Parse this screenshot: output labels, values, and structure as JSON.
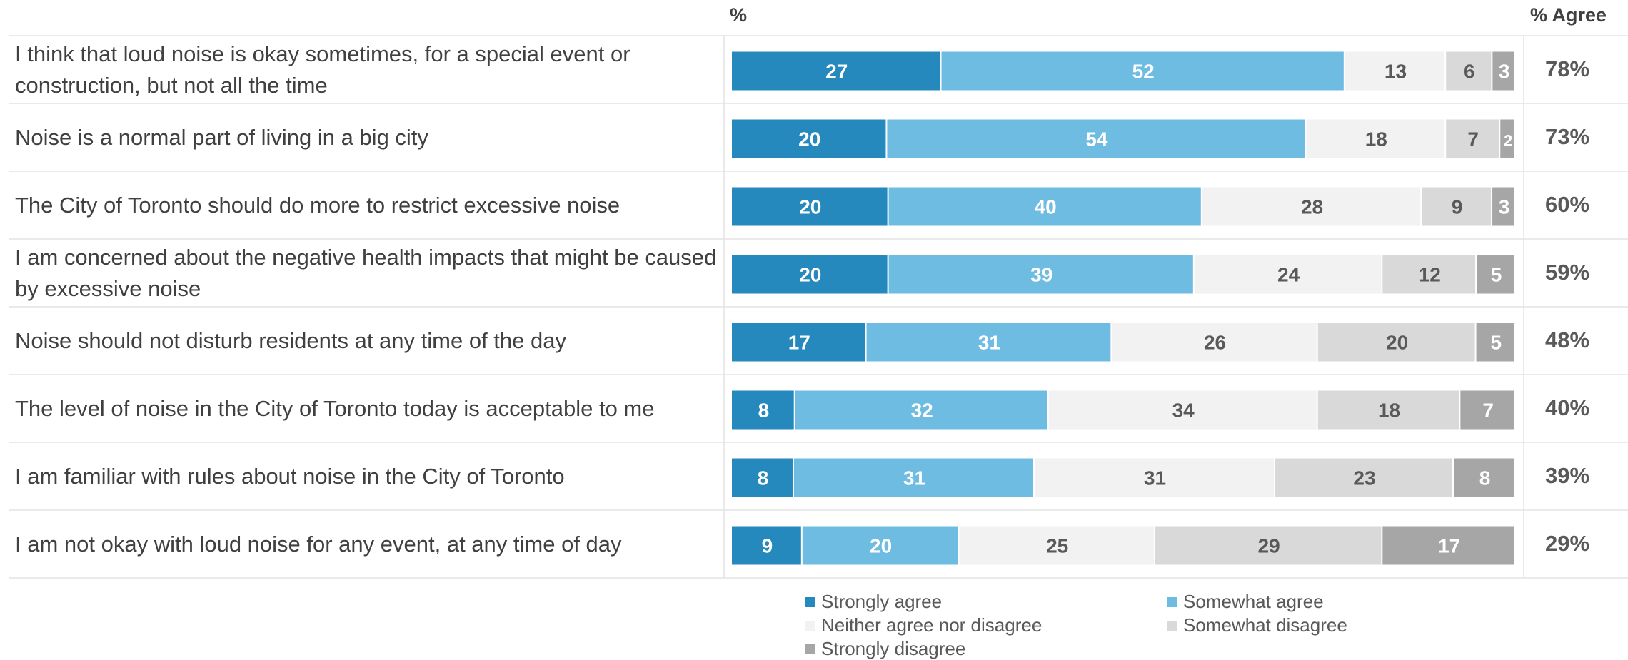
{
  "header": {
    "pct_label": "%",
    "agree_label": "% Agree"
  },
  "chart_data": {
    "type": "bar",
    "orientation": "horizontal",
    "stacked": true,
    "categories": [
      "I think that loud noise is okay sometimes, for a special event or construction, but not all the time",
      "Noise is a normal part of living in a big city",
      "The City of Toronto should do more to restrict excessive noise",
      "I am concerned about the negative health impacts that might be caused by excessive noise",
      "Noise should not disturb residents at any time of the day",
      "The level of noise in the City of Toronto today is acceptable to me",
      "I am familiar with rules about noise in the City of Toronto",
      "I am not okay with loud noise for any event, at any time of day"
    ],
    "series": [
      {
        "name": "Strongly agree",
        "color": "#2589be",
        "label_color": "#ffffff",
        "values": [
          27,
          20,
          20,
          20,
          17,
          8,
          8,
          9
        ]
      },
      {
        "name": "Somewhat agree",
        "color": "#6fbce3",
        "label_color": "#ffffff",
        "values": [
          52,
          54,
          40,
          39,
          31,
          32,
          31,
          20
        ]
      },
      {
        "name": "Neither agree nor disagree",
        "color": "#f2f2f2",
        "label_color": "#595959",
        "values": [
          13,
          18,
          28,
          24,
          26,
          34,
          31,
          25
        ]
      },
      {
        "name": "Somewhat disagree",
        "color": "#d9d9d9",
        "label_color": "#595959",
        "values": [
          6,
          7,
          9,
          12,
          20,
          18,
          23,
          29
        ]
      },
      {
        "name": "Strongly disagree",
        "color": "#a6a6a6",
        "label_color": "#ffffff",
        "values": [
          3,
          2,
          3,
          5,
          5,
          7,
          8,
          17
        ]
      }
    ],
    "agree_percent": [
      "78%",
      "73%",
      "60%",
      "59%",
      "48%",
      "40%",
      "39%",
      "29%"
    ],
    "xlabel": "%",
    "legend_position": "bottom",
    "grid": false
  }
}
